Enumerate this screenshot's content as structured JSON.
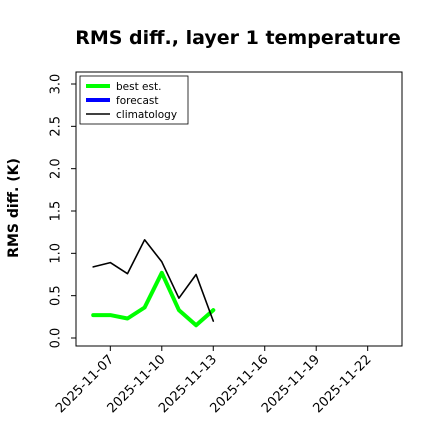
{
  "chart_data": {
    "type": "line",
    "title": "RMS diff., layer 1 temperature",
    "ylabel": "RMS diff. (K)",
    "xlabel": "",
    "ylim": [
      0,
      3.0
    ],
    "yticks": [
      "0.0",
      "0.5",
      "1.0",
      "1.5",
      "2.0",
      "2.5",
      "3.0"
    ],
    "xlim": [
      "2025-11-05",
      "2025-11-24"
    ],
    "xticks": [
      {
        "label": "2025-11-07",
        "date": "2025-11-07",
        "color": "#000000"
      },
      {
        "label": "2025-11-10",
        "date": "2025-11-10",
        "color": "#000000"
      },
      {
        "label": "2025-11-13",
        "date": "2025-11-13",
        "color": "#228b22"
      },
      {
        "label": "2025-11-16",
        "date": "2025-11-16",
        "color": "#000000"
      },
      {
        "label": "2025-11-19",
        "date": "2025-11-19",
        "color": "#000000"
      },
      {
        "label": "2025-11-22",
        "date": "2025-11-22",
        "color": "#000000"
      }
    ],
    "legend_position": "top-left",
    "grid": false,
    "series": [
      {
        "name": "best est.",
        "color": "#00ff00",
        "points": [
          {
            "x": "2025-11-06",
            "y": 0.27
          },
          {
            "x": "2025-11-07",
            "y": 0.27
          },
          {
            "x": "2025-11-08",
            "y": 0.23
          },
          {
            "x": "2025-11-09",
            "y": 0.36
          },
          {
            "x": "2025-11-10",
            "y": 0.77
          },
          {
            "x": "2025-11-11",
            "y": 0.33
          },
          {
            "x": "2025-11-12",
            "y": 0.15
          },
          {
            "x": "2025-11-13",
            "y": 0.33
          }
        ]
      },
      {
        "name": "forecast",
        "color": "#0000ff",
        "points": []
      },
      {
        "name": "climatology",
        "color": "#000000",
        "points": [
          {
            "x": "2025-11-06",
            "y": 0.84
          },
          {
            "x": "2025-11-07",
            "y": 0.89
          },
          {
            "x": "2025-11-08",
            "y": 0.76
          },
          {
            "x": "2025-11-09",
            "y": 1.16
          },
          {
            "x": "2025-11-10",
            "y": 0.9
          },
          {
            "x": "2025-11-11",
            "y": 0.47
          },
          {
            "x": "2025-11-12",
            "y": 0.75
          },
          {
            "x": "2025-11-13",
            "y": 0.2
          }
        ]
      }
    ]
  }
}
